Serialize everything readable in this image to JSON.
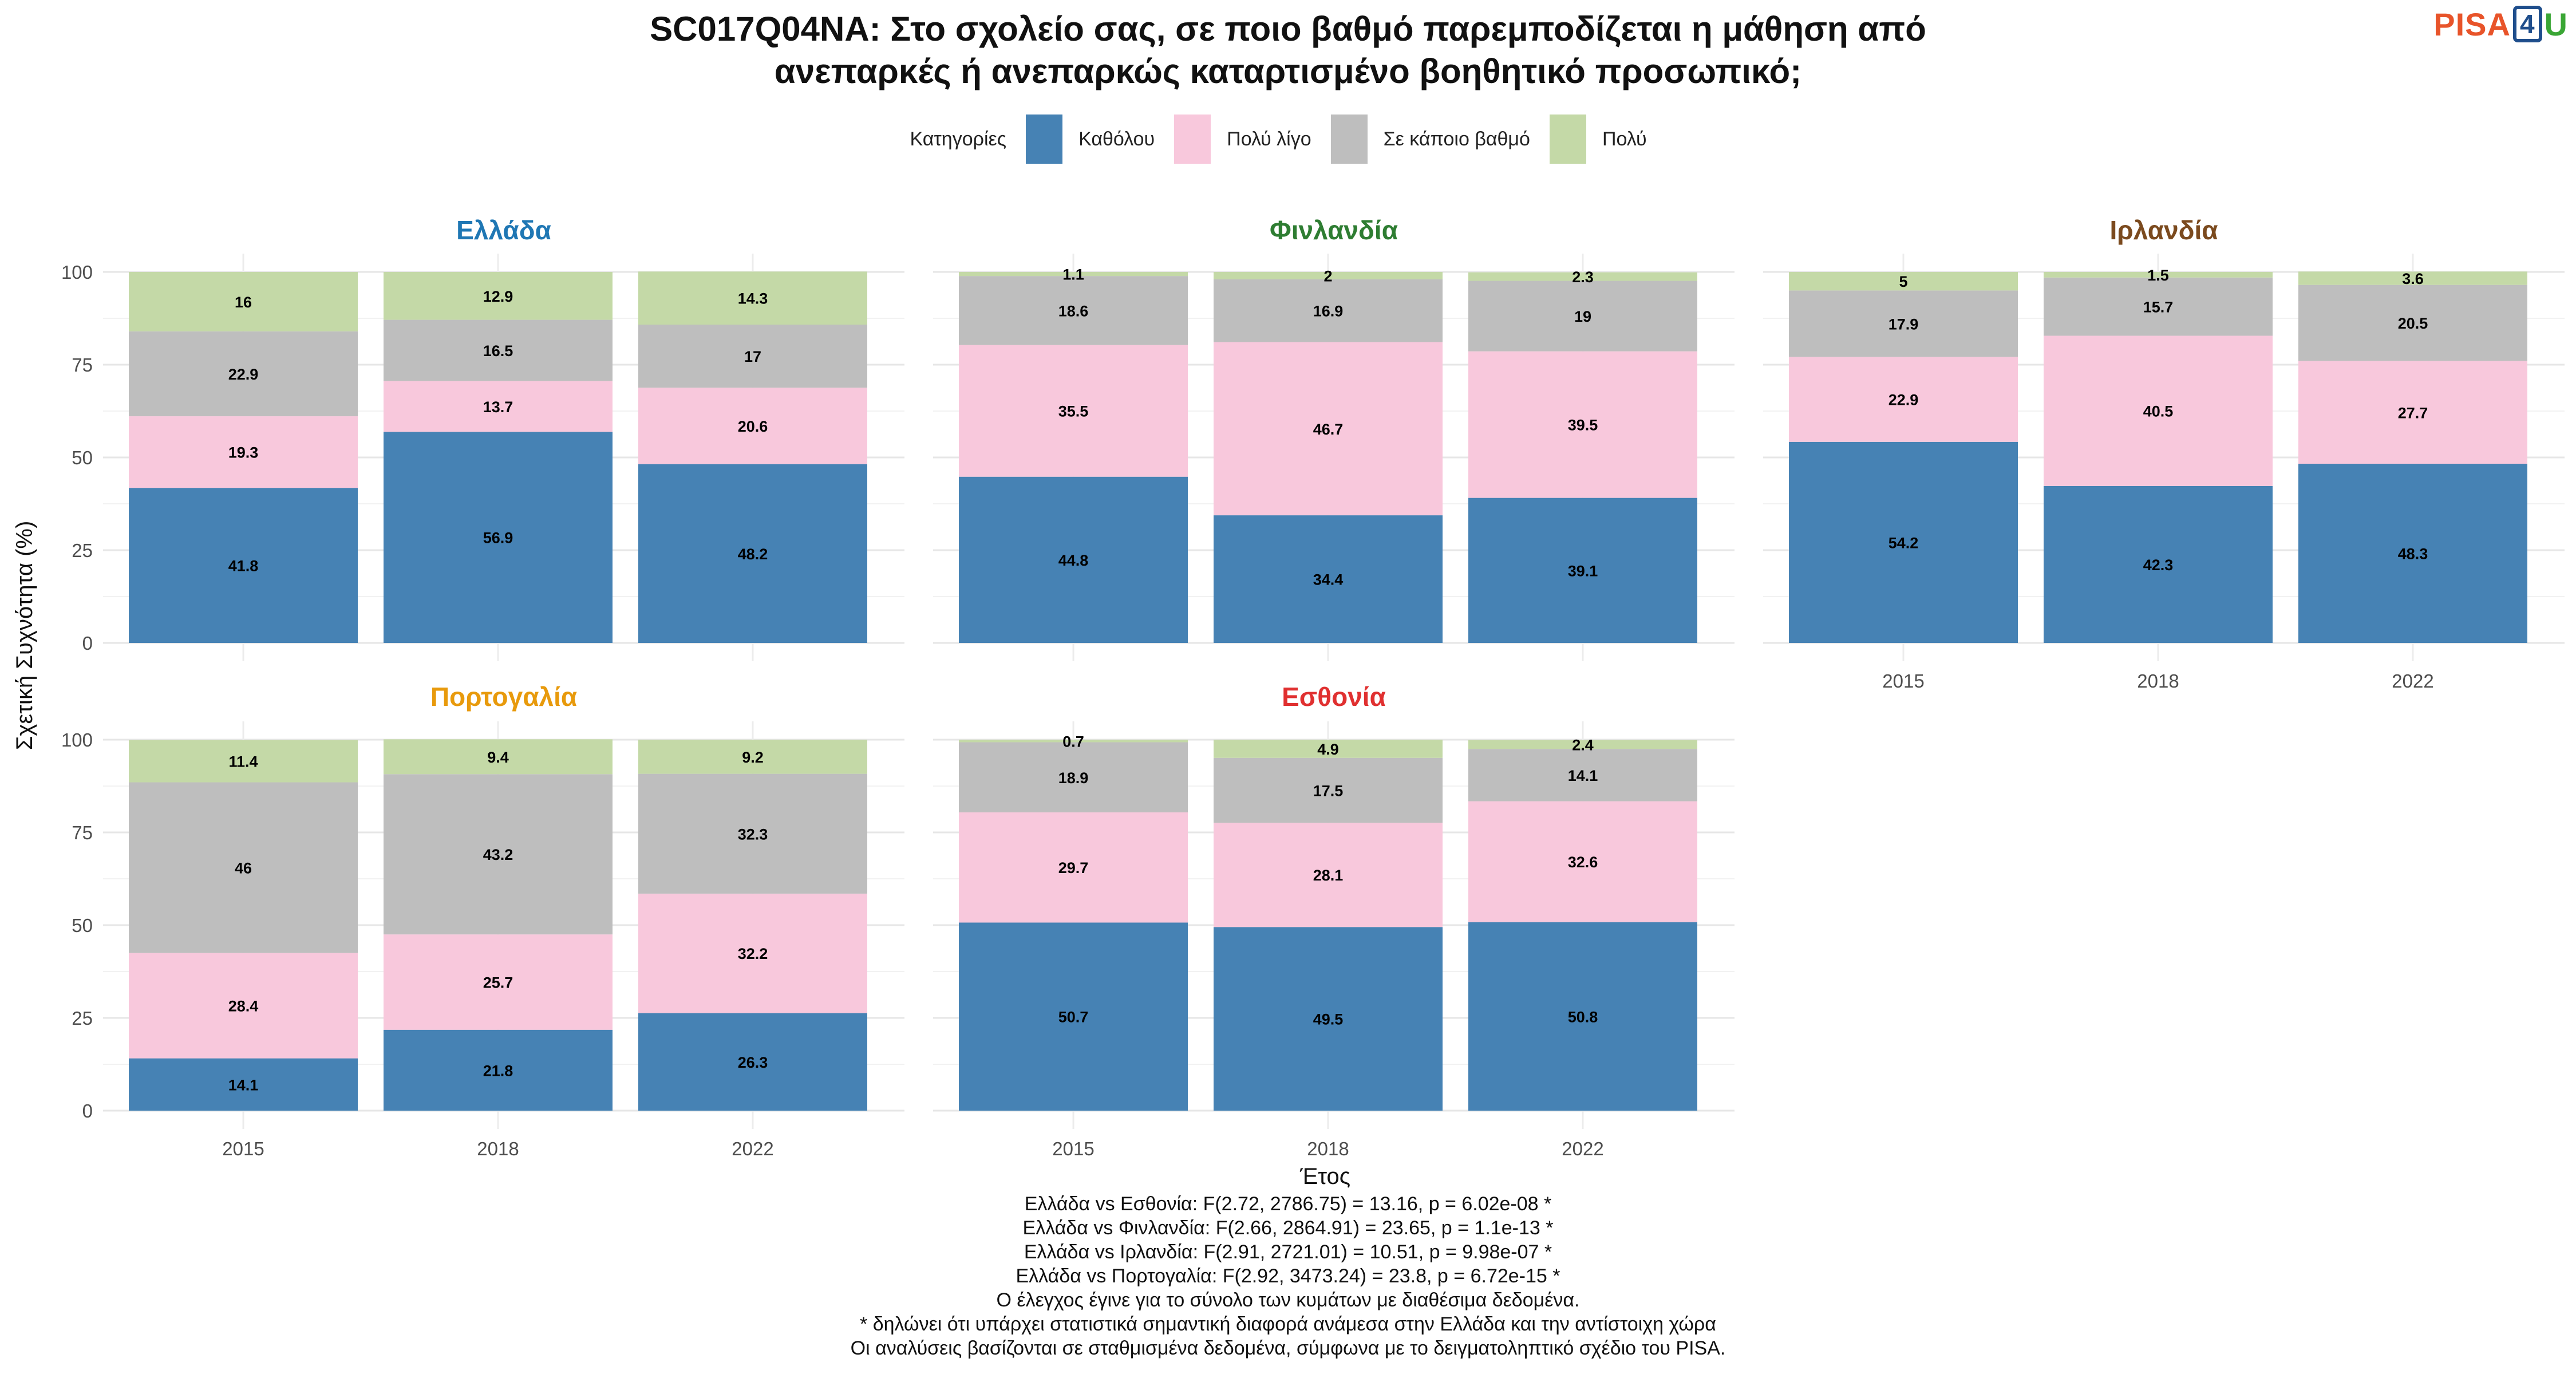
{
  "title_lines": [
    "SC017Q04NA: Στο σχολείο σας, σε ποιο βαθμό παρεμποδίζεται η μάθηση από",
    "ανεπαρκές ή ανεπαρκώς καταρτισμένο βοηθητικό προσωπικό;"
  ],
  "logo": {
    "part1": "PISA",
    "part2": "4",
    "part3": "U",
    "colors": {
      "pisa": "#e8542a",
      "four": "#1f4e8c",
      "u": "#3aa635"
    }
  },
  "legend": {
    "title": "Κατηγορίες",
    "items": [
      {
        "label": "Καθόλου",
        "color": "#4682b4"
      },
      {
        "label": "Πολύ λίγο",
        "color": "#f8c8dc"
      },
      {
        "label": "Σε κάποιο βαθμό",
        "color": "#bebebe"
      },
      {
        "label": "Πολύ",
        "color": "#c4d9a7"
      }
    ]
  },
  "chart_data": {
    "type": "bar",
    "stacked": true,
    "xlabel": "Έτος",
    "ylabel": "Σχετική Συχνότητα (%)",
    "ylim": [
      0,
      100
    ],
    "yticks": [
      0,
      25,
      50,
      75,
      100
    ],
    "categories": [
      "2015",
      "2018",
      "2022"
    ],
    "series_names": [
      "Καθόλου",
      "Πολύ λίγο",
      "Σε κάποιο βαθμό",
      "Πολύ"
    ],
    "series_colors": [
      "#4682b4",
      "#f8c8dc",
      "#bebebe",
      "#c4d9a7"
    ],
    "grid": true,
    "panels": [
      {
        "country": "Ελλάδα",
        "color": "#1f77b4",
        "values": [
          [
            41.8,
            19.3,
            22.9,
            16
          ],
          [
            56.9,
            13.7,
            16.5,
            12.9
          ],
          [
            48.2,
            20.6,
            17,
            14.3
          ]
        ]
      },
      {
        "country": "Φινλανδία",
        "color": "#2e7d32",
        "values": [
          [
            44.8,
            35.5,
            18.6,
            1.1
          ],
          [
            34.4,
            46.7,
            16.9,
            2
          ],
          [
            39.1,
            39.5,
            19,
            2.3
          ]
        ]
      },
      {
        "country": "Ιρλανδία",
        "color": "#7b4a1e",
        "values": [
          [
            54.2,
            22.9,
            17.9,
            5
          ],
          [
            42.3,
            40.5,
            15.7,
            1.5
          ],
          [
            48.3,
            27.7,
            20.5,
            3.6
          ]
        ]
      },
      {
        "country": "Πορτογαλία",
        "color": "#e89a0c",
        "values": [
          [
            14.1,
            28.4,
            46,
            11.4
          ],
          [
            21.8,
            25.7,
            43.2,
            9.4
          ],
          [
            26.3,
            32.2,
            32.3,
            9.2
          ]
        ]
      },
      {
        "country": "Εσθονία",
        "color": "#e03030",
        "values": [
          [
            50.7,
            29.7,
            18.9,
            0.7
          ],
          [
            49.5,
            28.1,
            17.5,
            4.9
          ],
          [
            50.8,
            32.6,
            14.1,
            2.4
          ]
        ]
      }
    ]
  },
  "footnotes": [
    "Ελλάδα vs Εσθονία: F(2.72, 2786.75) = 13.16, p = 6.02e-08 *",
    "Ελλάδα vs Φινλανδία: F(2.66, 2864.91) = 23.65, p = 1.1e-13 *",
    "Ελλάδα vs Ιρλανδία: F(2.91, 2721.01) = 10.51, p = 9.98e-07 *",
    "Ελλάδα vs Πορτογαλία: F(2.92, 3473.24) = 23.8, p = 6.72e-15 *",
    "Ο έλεγχος έγινε για το σύνολο των κυμάτων με διαθέσιμα δεδομένα.",
    "* δηλώνει ότι υπάρχει στατιστικά σημαντική διαφορά ανάμεσα στην Ελλάδα και την αντίστοιχη χώρα",
    "Οι αναλύσεις βασίζονται σε σταθμισμένα δεδομένα, σύμφωνα με το δειγματοληπτικό σχέδιο του PISA."
  ]
}
